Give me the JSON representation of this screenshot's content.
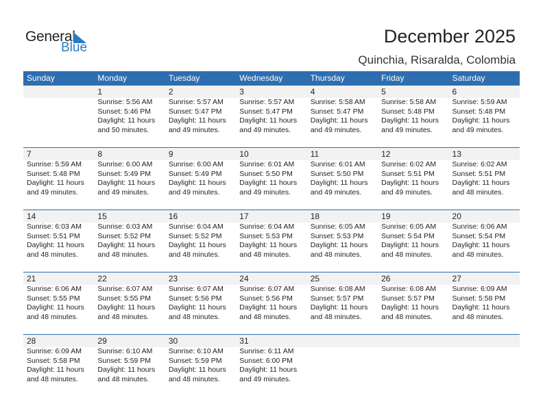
{
  "logo": {
    "general": "General",
    "blue": "Blue"
  },
  "title": "December 2025",
  "location": "Quinchia, Risaralda, Colombia",
  "weekdays": [
    "Sunday",
    "Monday",
    "Tuesday",
    "Wednesday",
    "Thursday",
    "Friday",
    "Saturday"
  ],
  "weeks": [
    [
      null,
      {
        "day": "1",
        "sunrise": "Sunrise: 5:56 AM",
        "sunset": "Sunset: 5:46 PM",
        "daylight": "Daylight: 11 hours",
        "minutes": "and 50 minutes."
      },
      {
        "day": "2",
        "sunrise": "Sunrise: 5:57 AM",
        "sunset": "Sunset: 5:47 PM",
        "daylight": "Daylight: 11 hours",
        "minutes": "and 49 minutes."
      },
      {
        "day": "3",
        "sunrise": "Sunrise: 5:57 AM",
        "sunset": "Sunset: 5:47 PM",
        "daylight": "Daylight: 11 hours",
        "minutes": "and 49 minutes."
      },
      {
        "day": "4",
        "sunrise": "Sunrise: 5:58 AM",
        "sunset": "Sunset: 5:47 PM",
        "daylight": "Daylight: 11 hours",
        "minutes": "and 49 minutes."
      },
      {
        "day": "5",
        "sunrise": "Sunrise: 5:58 AM",
        "sunset": "Sunset: 5:48 PM",
        "daylight": "Daylight: 11 hours",
        "minutes": "and 49 minutes."
      },
      {
        "day": "6",
        "sunrise": "Sunrise: 5:59 AM",
        "sunset": "Sunset: 5:48 PM",
        "daylight": "Daylight: 11 hours",
        "minutes": "and 49 minutes."
      }
    ],
    [
      {
        "day": "7",
        "sunrise": "Sunrise: 5:59 AM",
        "sunset": "Sunset: 5:48 PM",
        "daylight": "Daylight: 11 hours",
        "minutes": "and 49 minutes."
      },
      {
        "day": "8",
        "sunrise": "Sunrise: 6:00 AM",
        "sunset": "Sunset: 5:49 PM",
        "daylight": "Daylight: 11 hours",
        "minutes": "and 49 minutes."
      },
      {
        "day": "9",
        "sunrise": "Sunrise: 6:00 AM",
        "sunset": "Sunset: 5:49 PM",
        "daylight": "Daylight: 11 hours",
        "minutes": "and 49 minutes."
      },
      {
        "day": "10",
        "sunrise": "Sunrise: 6:01 AM",
        "sunset": "Sunset: 5:50 PM",
        "daylight": "Daylight: 11 hours",
        "minutes": "and 49 minutes."
      },
      {
        "day": "11",
        "sunrise": "Sunrise: 6:01 AM",
        "sunset": "Sunset: 5:50 PM",
        "daylight": "Daylight: 11 hours",
        "minutes": "and 49 minutes."
      },
      {
        "day": "12",
        "sunrise": "Sunrise: 6:02 AM",
        "sunset": "Sunset: 5:51 PM",
        "daylight": "Daylight: 11 hours",
        "minutes": "and 49 minutes."
      },
      {
        "day": "13",
        "sunrise": "Sunrise: 6:02 AM",
        "sunset": "Sunset: 5:51 PM",
        "daylight": "Daylight: 11 hours",
        "minutes": "and 48 minutes."
      }
    ],
    [
      {
        "day": "14",
        "sunrise": "Sunrise: 6:03 AM",
        "sunset": "Sunset: 5:51 PM",
        "daylight": "Daylight: 11 hours",
        "minutes": "and 48 minutes."
      },
      {
        "day": "15",
        "sunrise": "Sunrise: 6:03 AM",
        "sunset": "Sunset: 5:52 PM",
        "daylight": "Daylight: 11 hours",
        "minutes": "and 48 minutes."
      },
      {
        "day": "16",
        "sunrise": "Sunrise: 6:04 AM",
        "sunset": "Sunset: 5:52 PM",
        "daylight": "Daylight: 11 hours",
        "minutes": "and 48 minutes."
      },
      {
        "day": "17",
        "sunrise": "Sunrise: 6:04 AM",
        "sunset": "Sunset: 5:53 PM",
        "daylight": "Daylight: 11 hours",
        "minutes": "and 48 minutes."
      },
      {
        "day": "18",
        "sunrise": "Sunrise: 6:05 AM",
        "sunset": "Sunset: 5:53 PM",
        "daylight": "Daylight: 11 hours",
        "minutes": "and 48 minutes."
      },
      {
        "day": "19",
        "sunrise": "Sunrise: 6:05 AM",
        "sunset": "Sunset: 5:54 PM",
        "daylight": "Daylight: 11 hours",
        "minutes": "and 48 minutes."
      },
      {
        "day": "20",
        "sunrise": "Sunrise: 6:06 AM",
        "sunset": "Sunset: 5:54 PM",
        "daylight": "Daylight: 11 hours",
        "minutes": "and 48 minutes."
      }
    ],
    [
      {
        "day": "21",
        "sunrise": "Sunrise: 6:06 AM",
        "sunset": "Sunset: 5:55 PM",
        "daylight": "Daylight: 11 hours",
        "minutes": "and 48 minutes."
      },
      {
        "day": "22",
        "sunrise": "Sunrise: 6:07 AM",
        "sunset": "Sunset: 5:55 PM",
        "daylight": "Daylight: 11 hours",
        "minutes": "and 48 minutes."
      },
      {
        "day": "23",
        "sunrise": "Sunrise: 6:07 AM",
        "sunset": "Sunset: 5:56 PM",
        "daylight": "Daylight: 11 hours",
        "minutes": "and 48 minutes."
      },
      {
        "day": "24",
        "sunrise": "Sunrise: 6:07 AM",
        "sunset": "Sunset: 5:56 PM",
        "daylight": "Daylight: 11 hours",
        "minutes": "and 48 minutes."
      },
      {
        "day": "25",
        "sunrise": "Sunrise: 6:08 AM",
        "sunset": "Sunset: 5:57 PM",
        "daylight": "Daylight: 11 hours",
        "minutes": "and 48 minutes."
      },
      {
        "day": "26",
        "sunrise": "Sunrise: 6:08 AM",
        "sunset": "Sunset: 5:57 PM",
        "daylight": "Daylight: 11 hours",
        "minutes": "and 48 minutes."
      },
      {
        "day": "27",
        "sunrise": "Sunrise: 6:09 AM",
        "sunset": "Sunset: 5:58 PM",
        "daylight": "Daylight: 11 hours",
        "minutes": "and 48 minutes."
      }
    ],
    [
      {
        "day": "28",
        "sunrise": "Sunrise: 6:09 AM",
        "sunset": "Sunset: 5:58 PM",
        "daylight": "Daylight: 11 hours",
        "minutes": "and 48 minutes."
      },
      {
        "day": "29",
        "sunrise": "Sunrise: 6:10 AM",
        "sunset": "Sunset: 5:59 PM",
        "daylight": "Daylight: 11 hours",
        "minutes": "and 48 minutes."
      },
      {
        "day": "30",
        "sunrise": "Sunrise: 6:10 AM",
        "sunset": "Sunset: 5:59 PM",
        "daylight": "Daylight: 11 hours",
        "minutes": "and 48 minutes."
      },
      {
        "day": "31",
        "sunrise": "Sunrise: 6:11 AM",
        "sunset": "Sunset: 6:00 PM",
        "daylight": "Daylight: 11 hours",
        "minutes": "and 49 minutes."
      },
      null,
      null,
      null
    ]
  ]
}
